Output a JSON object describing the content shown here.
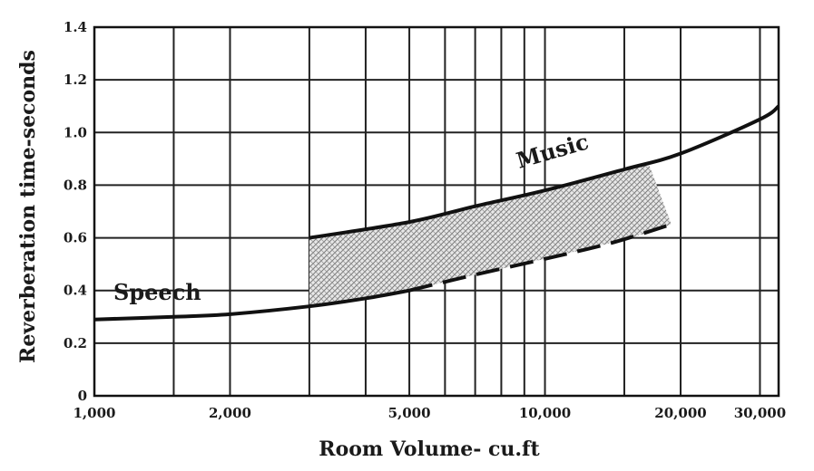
{
  "chart_data": {
    "type": "line",
    "title": "",
    "xlabel": "Room Volume- cu.ft",
    "ylabel": "Reverberation time-seconds",
    "xscale": "log",
    "xlim": [
      1000,
      33000
    ],
    "ylim": [
      0,
      1.4
    ],
    "grid": true,
    "x_ticks": [
      1000,
      2000,
      5000,
      10000,
      20000,
      30000
    ],
    "x_tick_labels": [
      "1,000",
      "2,000",
      "5,000",
      "10,000",
      "20,000",
      "30,000"
    ],
    "y_ticks": [
      0,
      0.2,
      0.4,
      0.6,
      0.8,
      1.0,
      1.2,
      1.4
    ],
    "y_tick_labels": [
      "0",
      "0.2",
      "0.4",
      "0.6",
      "0.8",
      "1.0",
      "1.2",
      "1.4"
    ],
    "series": [
      {
        "name": "Speech",
        "style": "solid",
        "x": [
          1000,
          1500,
          2000,
          3000,
          4000,
          5000
        ],
        "y": [
          0.29,
          0.3,
          0.31,
          0.34,
          0.37,
          0.4
        ]
      },
      {
        "name": "Speech",
        "style": "dashed",
        "x": [
          5000,
          7000,
          10000,
          14000,
          19000
        ],
        "y": [
          0.4,
          0.46,
          0.52,
          0.58,
          0.65
        ]
      },
      {
        "name": "Music",
        "style": "solid",
        "x": [
          3000,
          5000,
          7000,
          10000,
          15000,
          20000,
          30000,
          33000
        ],
        "y": [
          0.6,
          0.66,
          0.72,
          0.78,
          0.86,
          0.92,
          1.05,
          1.1
        ]
      }
    ],
    "shaded_region": {
      "x": [
        3000,
        5000,
        7000,
        10000,
        14000,
        17000,
        19000
      ],
      "y_top": [
        0.6,
        0.66,
        0.72,
        0.78,
        0.84,
        0.88,
        0.66
      ],
      "y_bottom": [
        0.34,
        0.4,
        0.46,
        0.52,
        0.58,
        0.62,
        0.65
      ]
    },
    "annotations": [
      "Speech",
      "Music"
    ]
  }
}
